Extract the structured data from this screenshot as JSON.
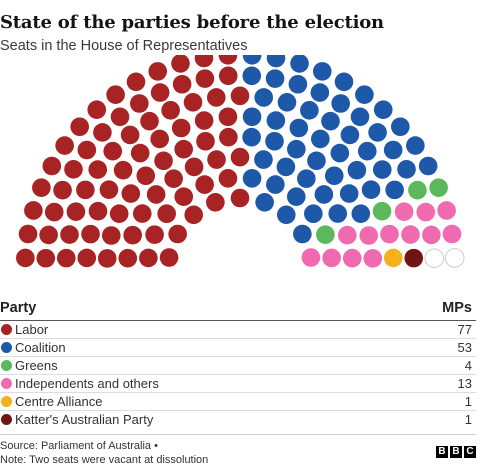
{
  "title": "State of the parties before the election",
  "subtitle": "Seats in the House of Representatives",
  "table": {
    "party_header": "Party",
    "mps_header": "MPs"
  },
  "chart_data": {
    "type": "parliament",
    "total_seats": 151,
    "series": [
      {
        "name": "Labor",
        "values": [
          77
        ],
        "color": "#a82323"
      },
      {
        "name": "Coalition",
        "values": [
          53
        ],
        "color": "#1e58a8"
      },
      {
        "name": "Greens",
        "values": [
          4
        ],
        "color": "#5cb85c"
      },
      {
        "name": "Independents and others",
        "values": [
          13
        ],
        "color": "#f06ab0"
      },
      {
        "name": "Centre Alliance",
        "values": [
          1
        ],
        "color": "#f3b21d"
      },
      {
        "name": "Katter's Australian Party",
        "values": [
          1
        ],
        "color": "#731414"
      }
    ],
    "vacant_seats": 2
  },
  "footer": {
    "source": "Source: Parliament of Australia •",
    "note": "Note: Two seats were vacant at dissolution",
    "logo": [
      "B",
      "B",
      "C"
    ]
  }
}
